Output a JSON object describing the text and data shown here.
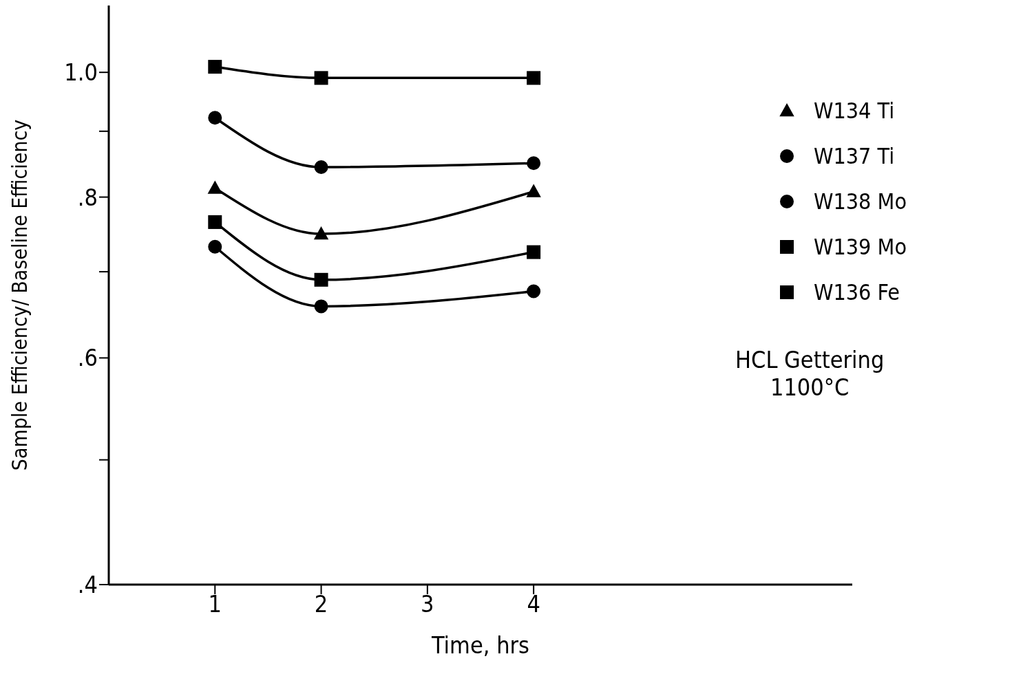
{
  "chart_data": {
    "type": "line",
    "xlabel": "Time, hrs",
    "ylabel": "Sample Efficiency/ Baseline Efficiency",
    "x": [
      1,
      2,
      4
    ],
    "series": [
      {
        "name": "W134 Ti",
        "color": "#000000",
        "marker": "triangle",
        "values": [
          0.813,
          0.749,
          0.808
        ]
      },
      {
        "name": "W137 Ti",
        "color": "#000000",
        "marker": "circle",
        "values": [
          0.732,
          0.658,
          0.676
        ]
      },
      {
        "name": "W138 Mo",
        "color": "#000000",
        "marker": "circle",
        "values": [
          0.922,
          0.844,
          0.85
        ]
      },
      {
        "name": "W139 Mo",
        "color": "#000000",
        "marker": "square",
        "values": [
          0.765,
          0.69,
          0.725
        ]
      },
      {
        "name": "W136 Fe",
        "color": "#000000",
        "marker": "square",
        "values": [
          1.01,
          0.99,
          0.99
        ]
      }
    ],
    "log": "y",
    "xlim": [
      0,
      7
    ],
    "xticks": [
      1,
      2,
      3,
      4
    ],
    "ylim": [
      0.4,
      1.127
    ],
    "yticks": [
      {
        "value": 0.4,
        "label": ".4"
      },
      {
        "value": 0.5,
        "label": null
      },
      {
        "value": 0.6,
        "label": ".6"
      },
      {
        "value": 0.7,
        "label": null
      },
      {
        "value": 0.8,
        "label": ".8"
      },
      {
        "value": 0.9,
        "label": null
      },
      {
        "value": 1.0,
        "label": "1.0"
      }
    ],
    "grid": false,
    "legend": "top right",
    "line_style": "solid",
    "annotations": [
      "HCL Gettering\n1100°C"
    ]
  }
}
